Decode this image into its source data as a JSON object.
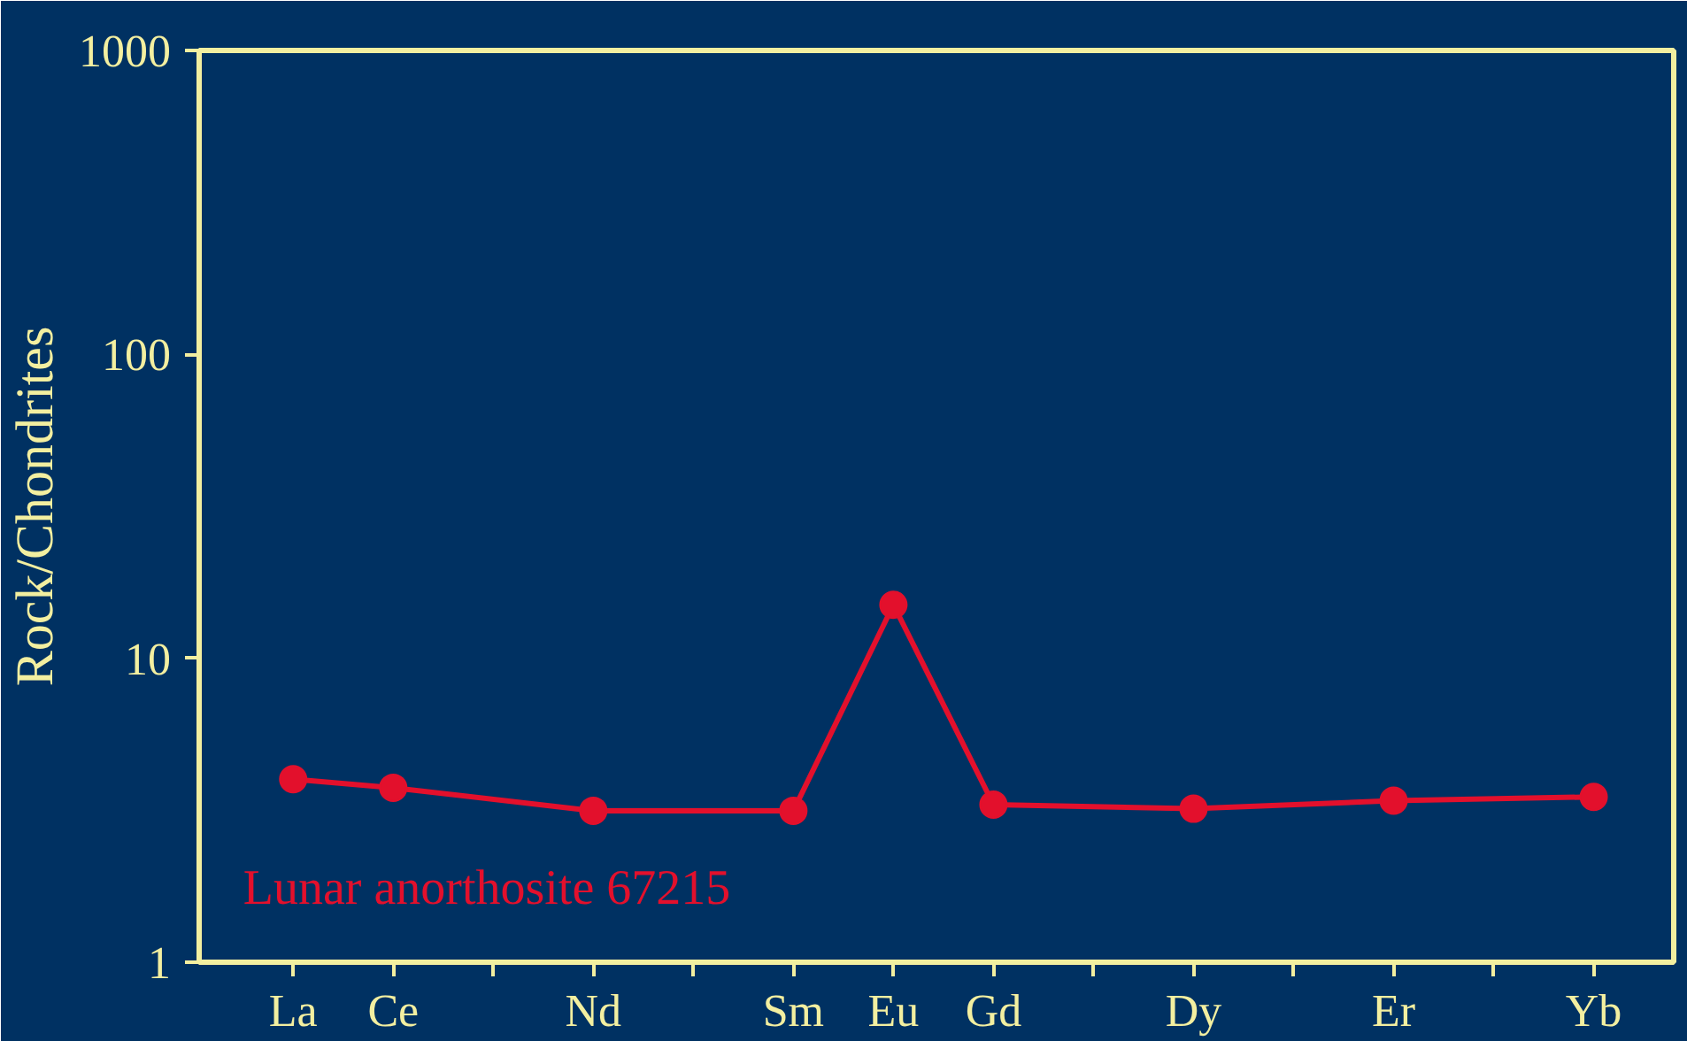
{
  "chart_data": {
    "type": "line",
    "ylabel": "Rock/Chondrites",
    "log": "y",
    "grid": false,
    "marker": "circle",
    "line_style": "solid",
    "categories": [
      "La",
      "Ce",
      null,
      "Nd",
      null,
      "Sm",
      "Eu",
      "Gd",
      null,
      "Dy",
      null,
      "Er",
      null,
      "Yb"
    ],
    "ylim": [
      1,
      1000
    ],
    "yticks": [
      1,
      10,
      100,
      1000
    ],
    "series": [
      {
        "name": "Lunar anorthosite 67215",
        "color": "#e3102c",
        "values": [
          4.0,
          3.75,
          null,
          3.15,
          null,
          3.15,
          15.0,
          3.3,
          null,
          3.2,
          null,
          3.4,
          null,
          3.5
        ]
      }
    ]
  }
}
